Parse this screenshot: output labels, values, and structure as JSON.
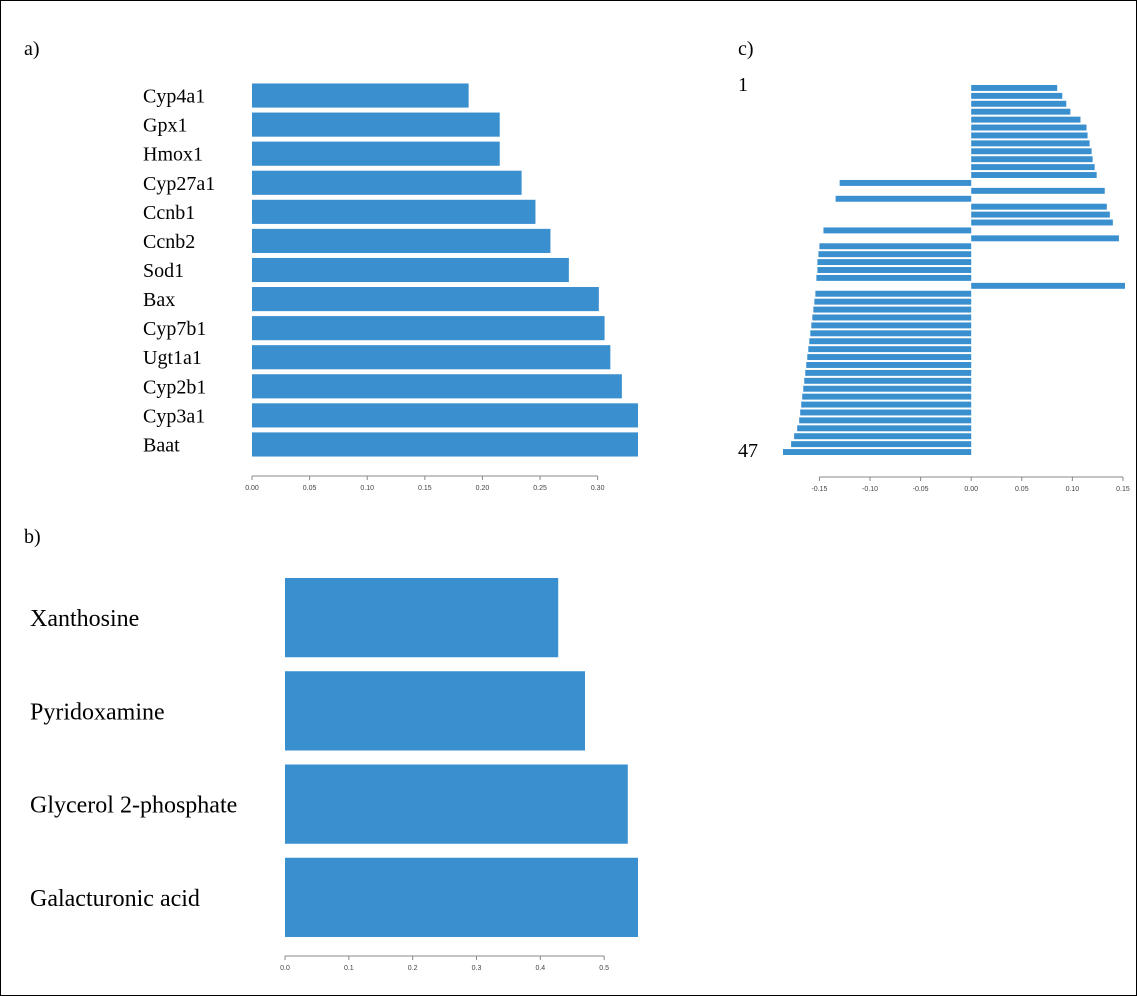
{
  "colors": {
    "bar": "#3a8fcf",
    "axis": "#888888"
  },
  "chart_data": [
    {
      "panel": "a)",
      "type": "bar",
      "orientation": "horizontal",
      "categories": [
        "Cyp4a1",
        "Gpx1",
        "Hmox1",
        "Cyp27a1",
        "Ccnb1",
        "Ccnb2",
        "Sod1",
        "Bax",
        "Cyp7b1",
        "Ugt1a1",
        "Cyp2b1",
        "Cyp3a1",
        "Baat"
      ],
      "values": [
        0.188,
        0.215,
        0.215,
        0.234,
        0.246,
        0.259,
        0.275,
        0.301,
        0.306,
        0.311,
        0.321,
        0.335,
        0.335
      ],
      "xticks": [
        "0.00",
        "0.05",
        "0.10",
        "0.15",
        "0.20",
        "0.25",
        "0.30"
      ],
      "xlim": [
        0,
        0.335
      ]
    },
    {
      "panel": "b)",
      "type": "bar",
      "orientation": "horizontal",
      "categories": [
        "Xanthosine",
        "Pyridoxamine",
        "Glycerol 2-phosphate",
        "Galacturonic acid"
      ],
      "values": [
        0.428,
        0.47,
        0.537,
        0.553
      ],
      "xticks": [
        "0.0",
        "0.1",
        "0.2",
        "0.3",
        "0.4",
        "0.5"
      ],
      "xlim": [
        0,
        0.553
      ]
    },
    {
      "panel": "c)",
      "type": "bar",
      "orientation": "horizontal",
      "first_label": "1",
      "last_label": "47",
      "values": [
        0.085,
        0.09,
        0.094,
        0.098,
        0.108,
        0.114,
        0.115,
        0.117,
        0.119,
        0.12,
        0.122,
        0.124,
        -0.13,
        0.132,
        -0.134,
        0.134,
        0.137,
        0.14,
        -0.146,
        0.146,
        -0.15,
        -0.151,
        -0.152,
        -0.152,
        -0.153,
        0.152,
        -0.154,
        -0.155,
        -0.156,
        -0.157,
        -0.158,
        -0.159,
        -0.16,
        -0.161,
        -0.162,
        -0.163,
        -0.164,
        -0.165,
        -0.166,
        -0.167,
        -0.168,
        -0.169,
        -0.17,
        -0.172,
        -0.175,
        -0.178,
        -0.186
      ],
      "xticks": [
        "-0.15",
        "-0.10",
        "-0.05",
        "0.00",
        "0.05",
        "0.10",
        "0.15"
      ],
      "xlim": [
        -0.186,
        0.152
      ]
    }
  ]
}
